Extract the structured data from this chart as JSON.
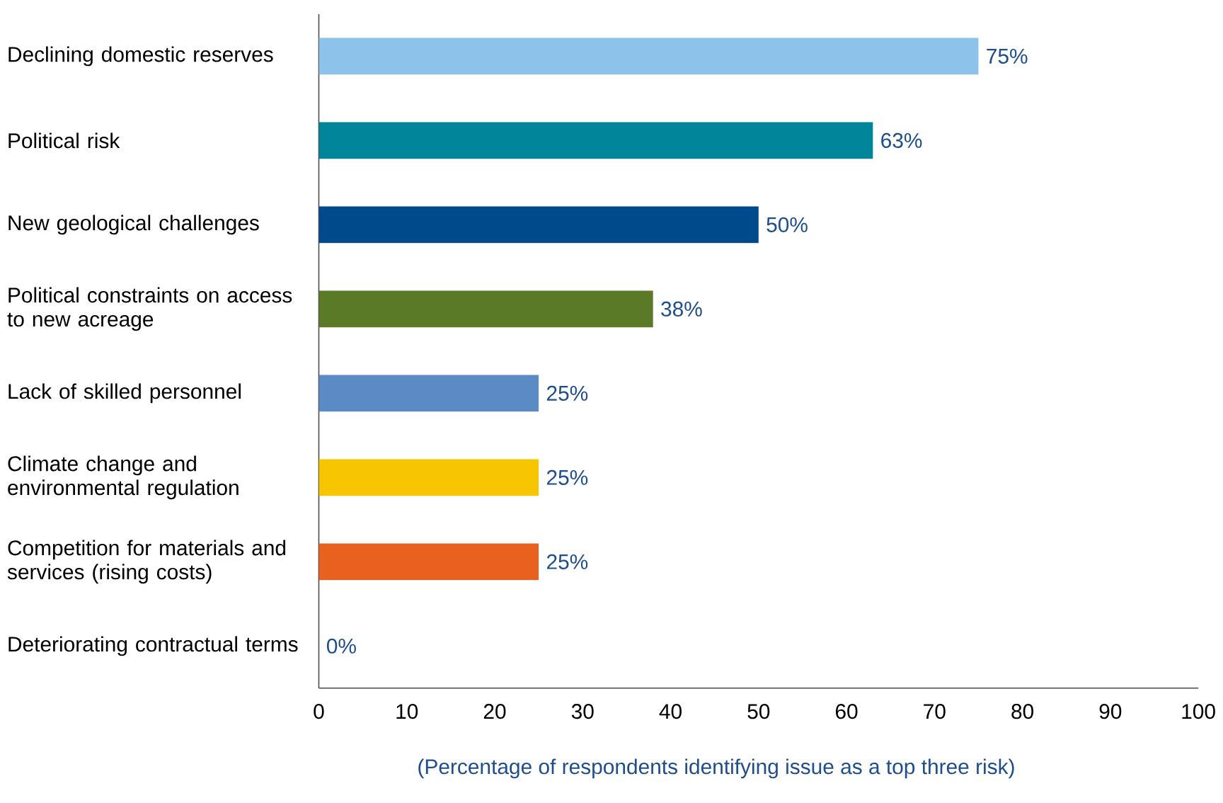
{
  "chart_data": {
    "type": "bar",
    "orientation": "horizontal",
    "categories": [
      "Declining domestic reserves",
      "Political risk",
      "New geological challenges",
      "Political constraints on access to new acreage",
      "Lack of skilled personnel",
      "Climate change and environmental regulation",
      "Competition for materials and services (rising costs)",
      "Deteriorating contractual terms"
    ],
    "values": [
      75,
      63,
      50,
      38,
      25,
      25,
      25,
      0
    ],
    "value_labels": [
      "75%",
      "63%",
      "50%",
      "38%",
      "25%",
      "25%",
      "25%",
      "0%"
    ],
    "colors": [
      "#8dc3ea",
      "#00859a",
      "#004a8c",
      "#5a7a28",
      "#5b8bc5",
      "#f7c600",
      "#e8611f",
      "#999999"
    ],
    "xlim": [
      0,
      100
    ],
    "xticks": [
      0,
      10,
      20,
      30,
      40,
      50,
      60,
      70,
      80,
      90,
      100
    ],
    "xlabel": "(Percentage of respondents identifying issue as a top three risk)"
  }
}
